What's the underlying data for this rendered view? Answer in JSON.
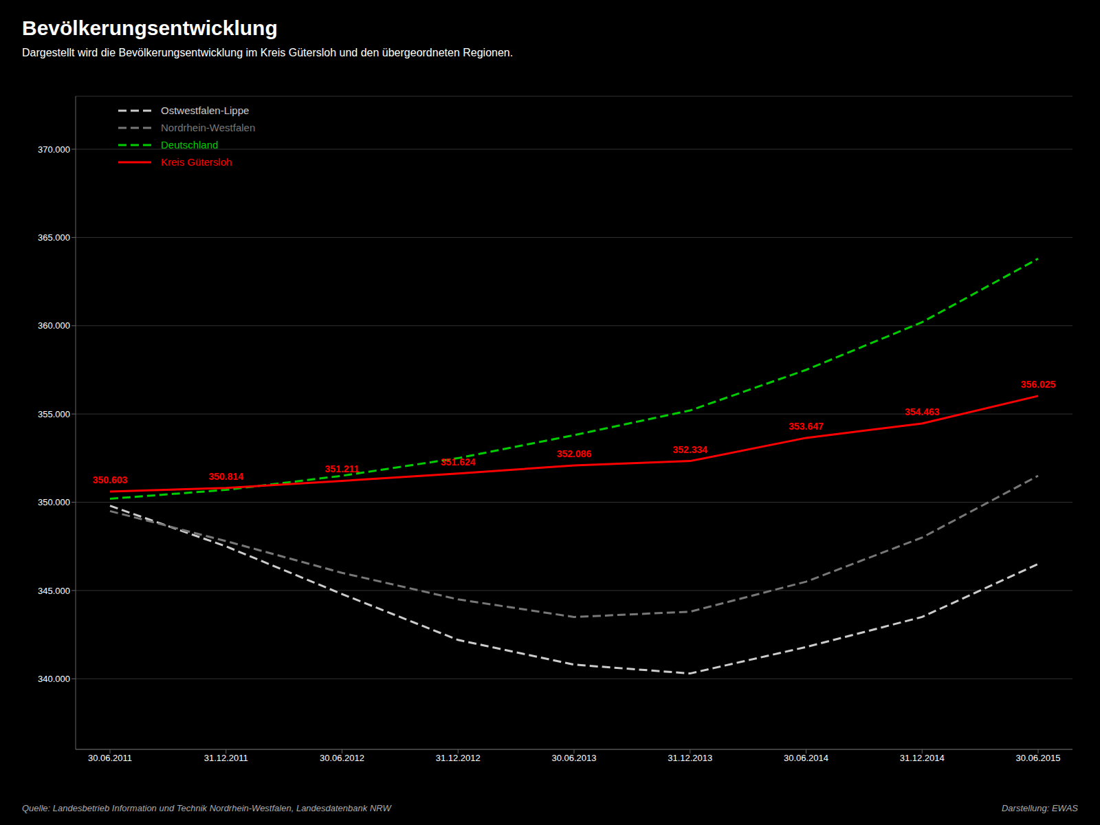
{
  "chart_data": {
    "type": "line",
    "title": "Bevölkerungsentwicklung",
    "subtitle": "Dargestellt wird die Bevölkerungsentwicklung im Kreis Gütersloh und den übergeordneten Regionen.",
    "annotations": [
      "Quelle: Landesbetrieb Information und Technik Nordrhein-Westfalen, Landesdatenbank NRW",
      "Darstellung: EWAS"
    ],
    "categories": [
      "30.06.2011",
      "31.12.2011",
      "30.06.2012",
      "31.12.2012",
      "30.06.2013",
      "31.12.2013",
      "30.06.2014",
      "31.12.2014",
      "30.06.2015"
    ],
    "series": [
      {
        "name": "Ostwestfalen-Lippe",
        "color": "#cccccc",
        "line_style": "dashed",
        "values": [
          349800,
          347500,
          344800,
          342200,
          340800,
          340300,
          341800,
          343500,
          346500
        ]
      },
      {
        "name": "Nordrhein-Westfalen",
        "color": "#777777",
        "line_style": "dashed",
        "values": [
          349500,
          347800,
          346000,
          344500,
          343500,
          343800,
          345500,
          348000,
          351500
        ]
      },
      {
        "name": "Deutschland",
        "color": "#00cc00",
        "line_style": "dashed",
        "values": [
          350200,
          350700,
          351500,
          352500,
          353800,
          355200,
          357500,
          360200,
          363800
        ]
      },
      {
        "name": "Kreis Gütersloh",
        "color": "#ff0000",
        "line_style": "solid",
        "data_labels": true,
        "values": [
          350603,
          350814,
          351211,
          351624,
          352086,
          352334,
          353647,
          354463,
          356025
        ],
        "value_labels": [
          "350.603",
          "350.814",
          "351.211",
          "351.624",
          "352.086",
          "352.334",
          "353.647",
          "354.463",
          "356.025"
        ]
      }
    ],
    "ylim": [
      336000,
      373000
    ],
    "yticks": [
      {
        "value": 370000,
        "label": "370.000"
      },
      {
        "value": 365000,
        "label": "365.000"
      },
      {
        "value": 360000,
        "label": "360.000"
      },
      {
        "value": 355000,
        "label": "355.000"
      },
      {
        "value": 350000,
        "label": "350.000"
      },
      {
        "value": 345000,
        "label": "345.000"
      },
      {
        "value": 340000,
        "label": "340.000"
      }
    ],
    "grid": true,
    "legend": "upper left"
  }
}
